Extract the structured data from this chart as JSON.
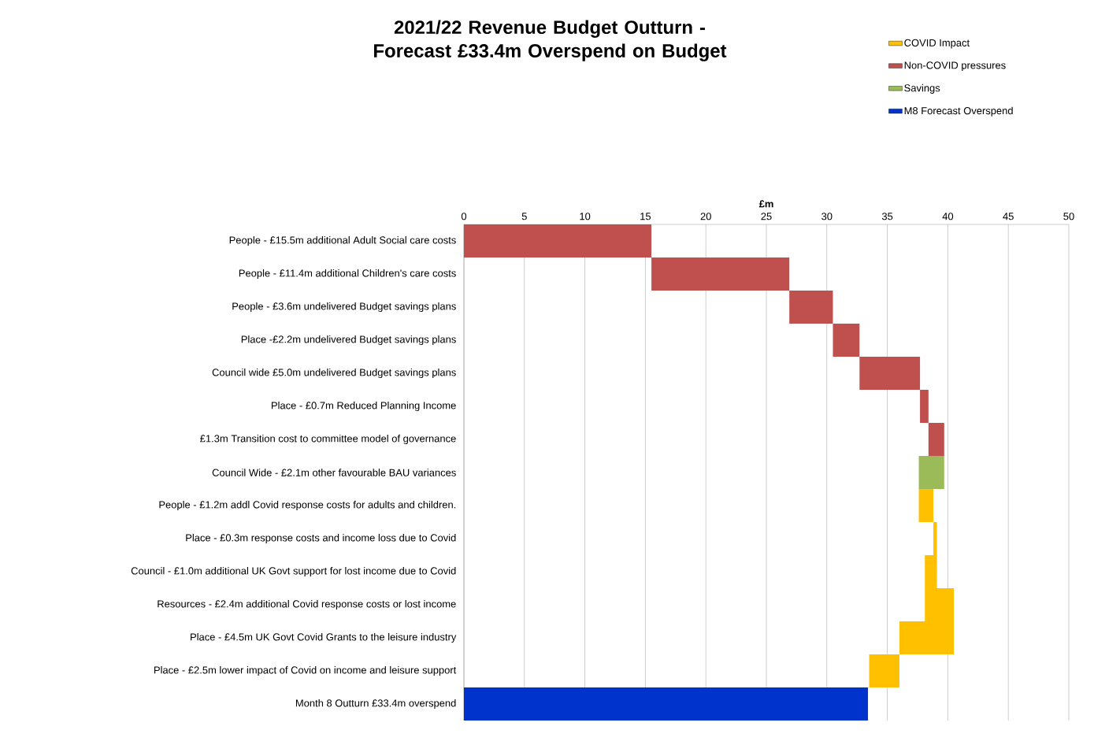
{
  "chart_data": {
    "type": "bar",
    "orientation": "horizontal",
    "title": "2021/22 Revenue Budget Outturn - Forecast £33.4m Overspend on Budget",
    "xlabel": "£m",
    "categories": [
      "People - £15.5m additional Adult Social care costs",
      "People - £11.4m additional Children's care costs",
      "People - £3.6m undelivered Budget savings plans",
      "Place -£2.2m undelivered Budget savings plans",
      "Council wide £5.0m undelivered Budget savings plans",
      "Place - £0.7m Reduced Planning Income",
      "£1.3m Transition cost to committee model of governance",
      "Council Wide - £2.1m other favourable BAU variances",
      "People - £1.2m addl Covid response costs for adults and children.",
      "Place - £0.3m response costs and income loss due to Covid",
      "Council - £1.0m additional UK Govt support for lost income due to Covid",
      "Resources - £2.4m additional Covid response costs or lost income",
      "Place - £4.5m UK Govt Covid Grants to the  leisure industry",
      "Place - £2.5m lower impact of Covid on income and leisure support",
      "Month 8 Outturn £33.4m overspend"
    ],
    "series": [
      {
        "name": "COVID Impact",
        "color": "#ffc000",
        "values": [
          null,
          null,
          null,
          null,
          null,
          null,
          null,
          null,
          1.2,
          0.3,
          -1.0,
          2.4,
          -4.5,
          -2.5,
          null
        ],
        "base": [
          null,
          null,
          null,
          null,
          null,
          null,
          null,
          null,
          37.6,
          38.8,
          39.1,
          38.1,
          40.5,
          36.0,
          null
        ]
      },
      {
        "name": "Non-COVID pressures",
        "color": "#c0504d",
        "values": [
          15.5,
          11.4,
          3.6,
          2.2,
          5.0,
          0.7,
          1.3,
          null,
          null,
          null,
          null,
          null,
          null,
          null,
          null
        ],
        "base": [
          0,
          15.5,
          26.9,
          30.5,
          32.7,
          37.7,
          38.4,
          null,
          null,
          null,
          null,
          null,
          null,
          null,
          null
        ]
      },
      {
        "name": "Savings",
        "color": "#9bbb59",
        "values": [
          null,
          null,
          null,
          null,
          null,
          null,
          null,
          -2.1,
          null,
          null,
          null,
          null,
          null,
          null,
          null
        ],
        "base": [
          null,
          null,
          null,
          null,
          null,
          null,
          null,
          39.7,
          null,
          null,
          null,
          null,
          null,
          null,
          null
        ]
      },
      {
        "name": "M8 Forecast Overspend",
        "color": "#0033cc",
        "values": [
          null,
          null,
          null,
          null,
          null,
          null,
          null,
          null,
          null,
          null,
          null,
          null,
          null,
          null,
          33.4
        ],
        "base": [
          null,
          null,
          null,
          null,
          null,
          null,
          null,
          null,
          null,
          null,
          null,
          null,
          null,
          null,
          0
        ]
      }
    ],
    "xlim": [
      0,
      50
    ],
    "xticks": [
      0,
      5,
      10,
      15,
      20,
      25,
      30,
      35,
      40,
      45,
      50
    ],
    "grid": "x",
    "legend": "top right"
  }
}
